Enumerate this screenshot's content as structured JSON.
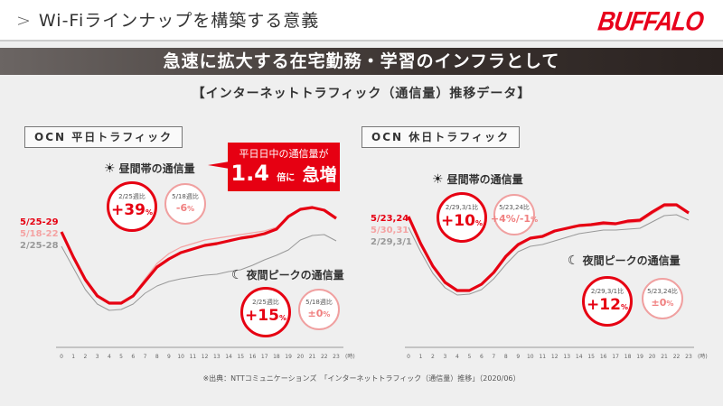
{
  "header": {
    "chevron": ">",
    "title": "Wi-Fiラインナップを構築する意義",
    "logo": "BUFFALO",
    "logo_tm": "TM"
  },
  "banner": "急速に拡大する在宅勤務・学習のインフラとして",
  "subtitle": "【インターネットトラフィック（通信量）推移データ】",
  "callout": {
    "line1": "平日日中の通信量が",
    "num": "1.4",
    "mid": "倍に",
    "end": "急増"
  },
  "panels": [
    {
      "label": "OCN 平日トラフィック",
      "legend": [
        "5/25-29",
        "5/18-22",
        "2/25-28"
      ],
      "day": {
        "label": "昼間帯の通信量",
        "big_cap": "2/25週比",
        "big_val": "+39",
        "small_cap": "5/18週比",
        "small_val": "-6"
      },
      "night": {
        "label": "夜間ピークの通信量",
        "big_cap": "2/25週比",
        "big_val": "+15",
        "small_cap": "5/18週比",
        "small_val": "±0"
      }
    },
    {
      "label": "OCN 休日トラフィック",
      "legend": [
        "5/23,24",
        "5/30,31",
        "2/29,3/1"
      ],
      "day": {
        "label": "昼間帯の通信量",
        "big_cap": "2/29,3/1比",
        "big_val": "+10",
        "small_cap": "5/23,24比",
        "small_val": "+4%/-1"
      },
      "night": {
        "label": "夜間ピークの通信量",
        "big_cap": "2/29,3/1比",
        "big_val": "+12",
        "small_cap": "5/23,24比",
        "small_val": "±0"
      }
    }
  ],
  "percent": "%",
  "source": "※出典：NTTコミュニケーションズ　「インターネットトラフィック（通信量）推移」（2020/06）",
  "colors": {
    "accent": "#e60012",
    "light": "#f4a3a3",
    "gray": "#999999"
  },
  "chart_data": [
    {
      "type": "line",
      "title": "OCN 平日トラフィック",
      "xlabel": "(時)",
      "ylabel": "",
      "x": [
        0,
        1,
        2,
        3,
        4,
        5,
        6,
        7,
        8,
        9,
        10,
        11,
        12,
        13,
        14,
        15,
        16,
        17,
        18,
        19,
        20,
        21,
        22,
        23
      ],
      "ylim": [
        0,
        160
      ],
      "series": [
        {
          "name": "5/25-29",
          "color": "#e60012",
          "values": [
            126,
            98,
            73,
            55,
            47,
            47,
            55,
            71,
            87,
            96,
            103,
            107,
            111,
            113,
            116,
            119,
            121,
            124,
            129,
            143,
            151,
            153,
            150,
            141
          ]
        },
        {
          "name": "5/18-22",
          "color": "#f4a3a3",
          "values": [
            126,
            98,
            73,
            56,
            48,
            48,
            56,
            74,
            91,
            102,
            109,
            113,
            117,
            119,
            121,
            123,
            125,
            127,
            131,
            143,
            151,
            153,
            150,
            141
          ]
        },
        {
          "name": "2/25-28",
          "color": "#999999",
          "values": [
            110,
            86,
            62,
            46,
            39,
            40,
            46,
            58,
            66,
            71,
            74,
            76,
            78,
            79,
            82,
            84,
            89,
            95,
            100,
            106,
            117,
            122,
            123,
            116
          ]
        }
      ]
    },
    {
      "type": "line",
      "title": "OCN 休日トラフィック",
      "xlabel": "(時)",
      "ylabel": "",
      "x": [
        0,
        1,
        2,
        3,
        4,
        5,
        6,
        7,
        8,
        9,
        10,
        11,
        12,
        13,
        14,
        15,
        16,
        17,
        18,
        19,
        20,
        21,
        22,
        23
      ],
      "ylim": [
        0,
        160
      ],
      "series": [
        {
          "name": "5/23,24",
          "color": "#e60012",
          "values": [
            143,
            113,
            88,
            70,
            61,
            61,
            68,
            81,
            99,
            112,
            119,
            121,
            127,
            130,
            133,
            134,
            136,
            135,
            138,
            139,
            148,
            156,
            156,
            147
          ]
        },
        {
          "name": "5/30,31",
          "color": "#f4a3a3",
          "values": [
            143,
            113,
            88,
            70,
            61,
            61,
            68,
            80,
            97,
            110,
            118,
            121,
            126,
            129,
            132,
            133,
            134,
            134,
            136,
            137,
            146,
            154,
            155,
            146
          ]
        },
        {
          "name": "2/29,3/1",
          "color": "#999999",
          "values": [
            131,
            104,
            80,
            64,
            56,
            57,
            62,
            74,
            90,
            104,
            110,
            112,
            116,
            120,
            124,
            126,
            128,
            128,
            129,
            130,
            137,
            144,
            145,
            139
          ]
        }
      ]
    }
  ]
}
